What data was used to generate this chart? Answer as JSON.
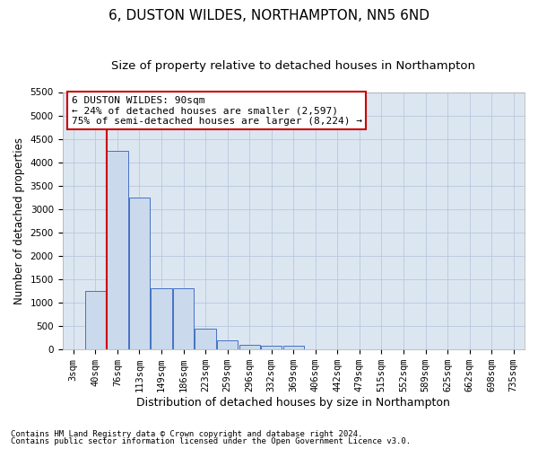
{
  "title": "6, DUSTON WILDES, NORTHAMPTON, NN5 6ND",
  "subtitle": "Size of property relative to detached houses in Northampton",
  "xlabel": "Distribution of detached houses by size in Northampton",
  "ylabel": "Number of detached properties",
  "footnote1": "Contains HM Land Registry data © Crown copyright and database right 2024.",
  "footnote2": "Contains public sector information licensed under the Open Government Licence v3.0.",
  "bar_labels": [
    "3sqm",
    "40sqm",
    "76sqm",
    "113sqm",
    "149sqm",
    "186sqm",
    "223sqm",
    "259sqm",
    "296sqm",
    "332sqm",
    "369sqm",
    "406sqm",
    "442sqm",
    "479sqm",
    "515sqm",
    "552sqm",
    "589sqm",
    "625sqm",
    "662sqm",
    "698sqm",
    "735sqm"
  ],
  "bar_values": [
    0,
    1250,
    4250,
    3250,
    1300,
    1300,
    450,
    200,
    100,
    75,
    75,
    0,
    0,
    0,
    0,
    0,
    0,
    0,
    0,
    0,
    0
  ],
  "bar_color": "#cad9ec",
  "bar_edge_color": "#4472c4",
  "vline_x_idx": 2,
  "vline_color": "#cc0000",
  "annotation_text": "6 DUSTON WILDES: 90sqm\n← 24% of detached houses are smaller (2,597)\n75% of semi-detached houses are larger (8,224) →",
  "annotation_box_facecolor": "#ffffff",
  "annotation_box_edgecolor": "#cc0000",
  "ylim_min": 0,
  "ylim_max": 5500,
  "yticks": [
    0,
    500,
    1000,
    1500,
    2000,
    2500,
    3000,
    3500,
    4000,
    4500,
    5000,
    5500
  ],
  "grid_color": "#b8c8dc",
  "plot_bg_color": "#dce6f1",
  "fig_bg_color": "#ffffff",
  "title_fontsize": 11,
  "subtitle_fontsize": 9.5,
  "xlabel_fontsize": 9,
  "ylabel_fontsize": 8.5,
  "tick_fontsize": 7.5,
  "annotation_fontsize": 8,
  "footnote_fontsize": 6.5
}
